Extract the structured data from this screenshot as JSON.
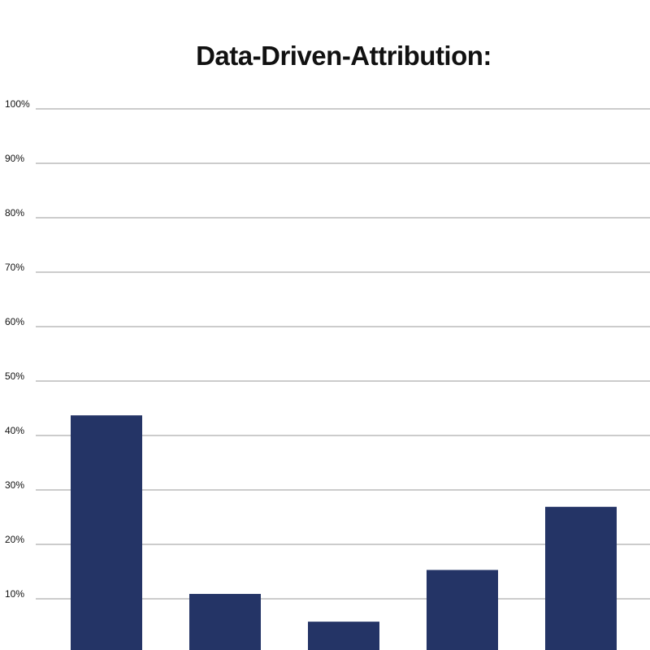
{
  "chart_data": {
    "type": "bar",
    "title": "Data-Driven-Attribution:",
    "xlabel": "",
    "ylabel": "",
    "categories": [
      "",
      "",
      "",
      "",
      ""
    ],
    "values": [
      43.7,
      10.9,
      5.8,
      15.3,
      26.9
    ],
    "ylim": [
      0,
      100
    ],
    "yticks": [
      "10%",
      "20%",
      "30%",
      "40%",
      "50%",
      "60%",
      "70%",
      "80%",
      "90%",
      "100%"
    ],
    "ytick_values": [
      10,
      20,
      30,
      40,
      50,
      60,
      70,
      80,
      90,
      100
    ],
    "grid": true,
    "bar_color": "#243466",
    "grid_color": "#cccccc"
  }
}
